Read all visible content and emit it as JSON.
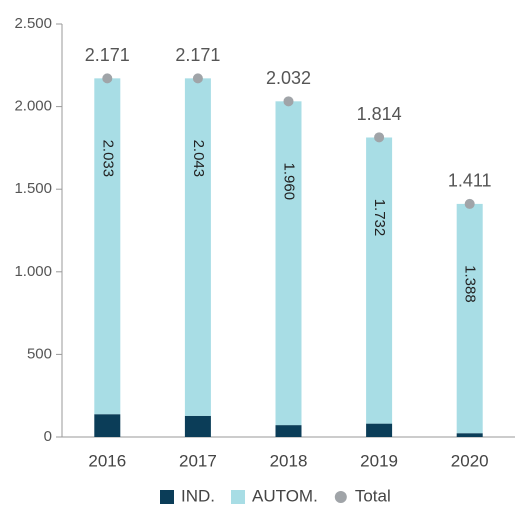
{
  "chart_data": {
    "type": "bar",
    "stacked": true,
    "categories": [
      "2016",
      "2017",
      "2018",
      "2019",
      "2020"
    ],
    "series": [
      {
        "name": "IND.",
        "color": "#0b3d58",
        "values": [
          138,
          128,
          72,
          81,
          23
        ],
        "value_labels": [
          "138",
          "128",
          "72",
          "81",
          "23"
        ]
      },
      {
        "name": "AUTOM.",
        "color": "#a8dde5",
        "values": [
          2033,
          2043,
          1960,
          1732,
          1388
        ],
        "value_labels": [
          "2.033",
          "2.043",
          "1.960",
          "1.732",
          "1.388"
        ]
      },
      {
        "name": "Total",
        "color": "#a0a4a8",
        "type": "scatter",
        "values": [
          2171,
          2171,
          2032,
          1814,
          1411
        ],
        "value_labels": [
          "2.171",
          "2.171",
          "2.032",
          "1.814",
          "1.411"
        ]
      }
    ],
    "ylim": [
      0,
      2500
    ],
    "yticks": [
      0,
      500,
      {
        "value": 1000,
        "label": "1.000"
      },
      {
        "value": 1500,
        "label": "1.500"
      },
      {
        "value": 2000,
        "label": "2.000"
      },
      {
        "value": 2500,
        "label": "2.500"
      }
    ],
    "legend": "bottom"
  }
}
